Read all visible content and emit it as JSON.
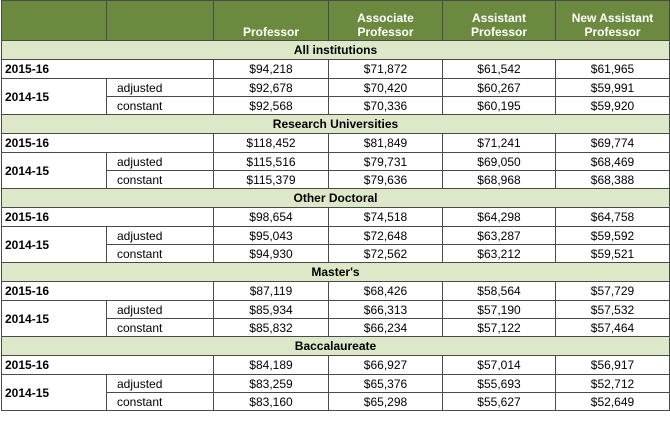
{
  "columns": [
    "",
    "",
    "Professor",
    "Associate Professor",
    "Assistant Professor",
    "New Assistant Professor"
  ],
  "sections": [
    {
      "title": "All institutions",
      "current": {
        "year": "2015-16",
        "values": [
          "$94,218",
          "$71,872",
          "$61,542",
          "$61,965"
        ]
      },
      "prior_year": "2014-15",
      "adjusted": {
        "label": "adjusted",
        "values": [
          "$92,678",
          "$70,420",
          "$60,267",
          "$59,991"
        ]
      },
      "constant": {
        "label": "constant",
        "values": [
          "$92,568",
          "$70,336",
          "$60,195",
          "$59,920"
        ]
      }
    },
    {
      "title": "Research Universities",
      "current": {
        "year": "2015-16",
        "values": [
          "$118,452",
          "$81,849",
          "$71,241",
          "$69,774"
        ]
      },
      "prior_year": "2014-15",
      "adjusted": {
        "label": "adjusted",
        "values": [
          "$115,516",
          "$79,731",
          "$69,050",
          "$68,469"
        ]
      },
      "constant": {
        "label": "constant",
        "values": [
          "$115,379",
          "$79,636",
          "$68,968",
          "$68,388"
        ]
      }
    },
    {
      "title": "Other Doctoral",
      "current": {
        "year": "2015-16",
        "values": [
          "$98,654",
          "$74,518",
          "$64,298",
          "$64,758"
        ]
      },
      "prior_year": "2014-15",
      "adjusted": {
        "label": "adjusted",
        "values": [
          "$95,043",
          "$72,648",
          "$63,287",
          "$59,592"
        ]
      },
      "constant": {
        "label": "constant",
        "values": [
          "$94,930",
          "$72,562",
          "$63,212",
          "$59,521"
        ]
      }
    },
    {
      "title": "Master's",
      "current": {
        "year": "2015-16",
        "values": [
          "$87,119",
          "$68,426",
          "$58,564",
          "$57,729"
        ]
      },
      "prior_year": "2014-15",
      "adjusted": {
        "label": "adjusted",
        "values": [
          "$85,934",
          "$66,313",
          "$57,190",
          "$57,532"
        ]
      },
      "constant": {
        "label": "constant",
        "values": [
          "$85,832",
          "$66,234",
          "$57,122",
          "$57,464"
        ]
      }
    },
    {
      "title": "Baccalaureate",
      "current": {
        "year": "2015-16",
        "values": [
          "$84,189",
          "$66,927",
          "$57,014",
          "$56,917"
        ]
      },
      "prior_year": "2014-15",
      "adjusted": {
        "label": "adjusted",
        "values": [
          "$83,259",
          "$65,376",
          "$55,693",
          "$52,712"
        ]
      },
      "constant": {
        "label": "constant",
        "values": [
          "$83,160",
          "$65,298",
          "$55,627",
          "$52,649"
        ]
      }
    }
  ]
}
